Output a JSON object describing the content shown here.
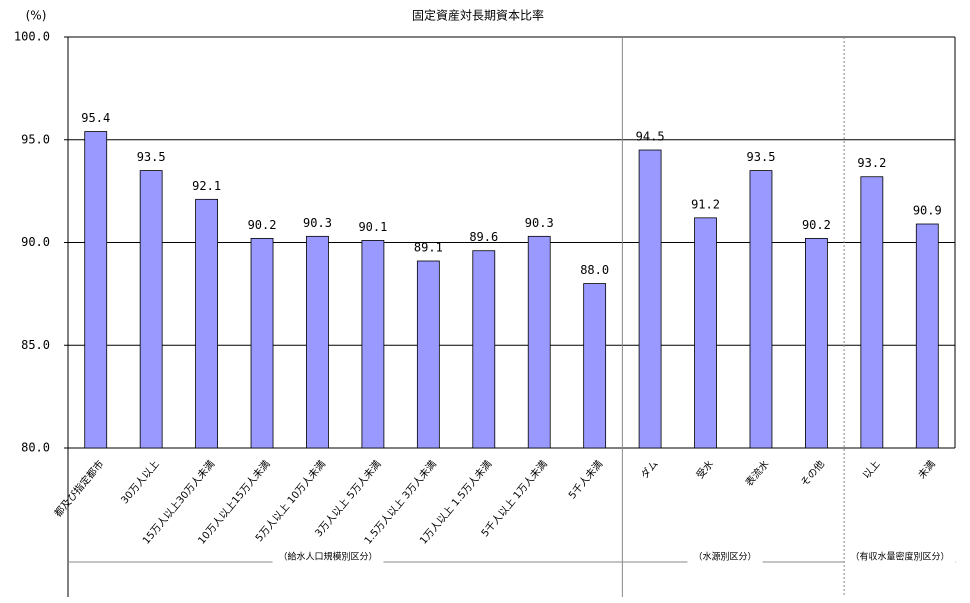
{
  "chart_data": {
    "type": "bar",
    "title": "固定資産対長期資本比率",
    "y_unit": "(%)",
    "categories": [
      "都及び指定都市",
      "30万人以上",
      "15万人以上30万人未満",
      "10万人以上15万人未満",
      "5万人以上 10万人未満",
      "3万人以上 5万人未満",
      "1.5万人以上 3万人未満",
      "1万人以上 1.5万人未満",
      "5千人以上 1万人未満",
      "5千人未満",
      "ダム",
      "受水",
      "表流水",
      "その他",
      "以上",
      "未満"
    ],
    "values": [
      95.4,
      93.5,
      92.1,
      90.2,
      90.3,
      90.1,
      89.1,
      89.6,
      90.3,
      88.0,
      94.5,
      91.2,
      93.5,
      90.2,
      93.2,
      90.9
    ],
    "value_labels": [
      "95.4",
      "93.5",
      "92.1",
      "90.2",
      "90.3",
      "90.1",
      "89.1",
      "89.6",
      "90.3",
      "88.0",
      "94.5",
      "91.2",
      "93.5",
      "90.2",
      "93.2",
      "90.9"
    ],
    "groups": [
      "（給水人口規模別区分）",
      "（水源別区分）",
      "（有収水量密度別区分）"
    ],
    "color": "#9999ff",
    "ylim": [
      80,
      100
    ],
    "yticks": [
      {
        "value": 80,
        "label": "80.0"
      },
      {
        "value": 85,
        "label": "85.0"
      },
      {
        "value": 90,
        "label": "90.0"
      },
      {
        "value": 95,
        "label": "95.0"
      },
      {
        "value": 100,
        "label": "100.0"
      }
    ],
    "grid": true
  }
}
